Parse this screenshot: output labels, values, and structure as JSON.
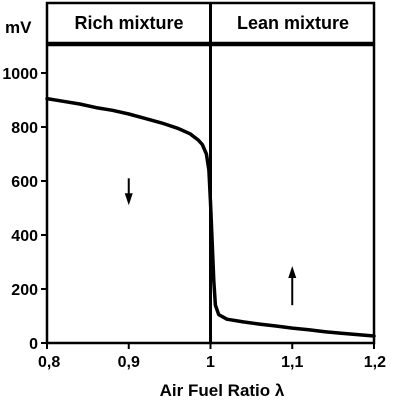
{
  "chart_data": {
    "type": "line",
    "y_unit_label": "mV",
    "xlabel": "Air Fuel Ratio  λ",
    "xlim": [
      0.8,
      1.2
    ],
    "ylim": [
      0,
      1100
    ],
    "x_ticks": [
      {
        "value": 0.8,
        "label": "0,8"
      },
      {
        "value": 0.9,
        "label": "0,9"
      },
      {
        "value": 1.0,
        "label": "1"
      },
      {
        "value": 1.1,
        "label": "1,1"
      },
      {
        "value": 1.2,
        "label": "1,2"
      }
    ],
    "y_ticks": [
      {
        "value": 0,
        "label": "0"
      },
      {
        "value": 200,
        "label": "200"
      },
      {
        "value": 400,
        "label": "400"
      },
      {
        "value": 600,
        "label": "600"
      },
      {
        "value": 800,
        "label": "800"
      },
      {
        "value": 1000,
        "label": "1000"
      }
    ],
    "regions": [
      {
        "label": "Rich mixture",
        "x_range": [
          0.8,
          1.0
        ]
      },
      {
        "label": "Lean mixture",
        "x_range": [
          1.0,
          1.2
        ]
      }
    ],
    "series": [
      {
        "points": [
          [
            0.8,
            905
          ],
          [
            0.82,
            895
          ],
          [
            0.84,
            885
          ],
          [
            0.86,
            872
          ],
          [
            0.88,
            862
          ],
          [
            0.9,
            848
          ],
          [
            0.92,
            832
          ],
          [
            0.94,
            815
          ],
          [
            0.96,
            795
          ],
          [
            0.975,
            775
          ],
          [
            0.985,
            752
          ],
          [
            0.99,
            735
          ],
          [
            0.995,
            700
          ],
          [
            0.998,
            640
          ],
          [
            1.0,
            520
          ],
          [
            1.002,
            380
          ],
          [
            1.004,
            230
          ],
          [
            1.006,
            140
          ],
          [
            1.01,
            105
          ],
          [
            1.02,
            88
          ],
          [
            1.04,
            78
          ],
          [
            1.06,
            70
          ],
          [
            1.08,
            63
          ],
          [
            1.1,
            55
          ],
          [
            1.12,
            49
          ],
          [
            1.14,
            42
          ],
          [
            1.16,
            36
          ],
          [
            1.18,
            31
          ],
          [
            1.2,
            26
          ]
        ]
      }
    ],
    "annotations": [
      {
        "type": "arrow",
        "x": 0.9,
        "direction": "down",
        "y_from": 610,
        "y_to": 510
      },
      {
        "type": "arrow",
        "x": 1.1,
        "direction": "up",
        "y_from": 140,
        "y_to": 285
      }
    ],
    "grid": false,
    "colors": {
      "line": "#000000",
      "background": "#ffffff"
    }
  }
}
